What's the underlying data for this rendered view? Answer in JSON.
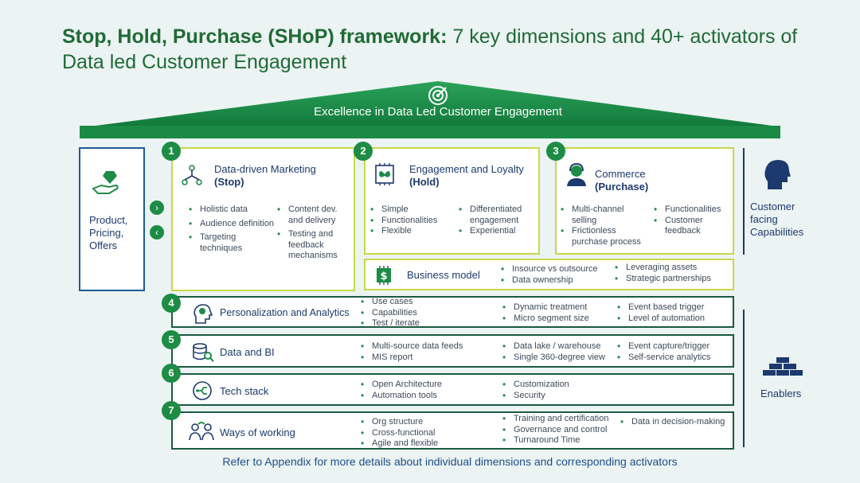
{
  "title": {
    "bold": "Stop, Hold, Purchase (SHoP) framework:",
    "rest": " 7 key dimensions and 40+ activators of Data led Customer Engagement"
  },
  "roof": {
    "label": "Excellence in Data Led Customer Engagement"
  },
  "left_panel": {
    "label": "Product, Pricing, Offers"
  },
  "pillars": [
    {
      "num": "1",
      "title": "Data-driven Marketing",
      "sub": "(Stop)",
      "col1": [
        "Holistic data",
        "Audience definition",
        "Targeting techniques"
      ],
      "col2": [
        "Content dev. and delivery",
        "Testing and feedback mechanisms"
      ]
    },
    {
      "num": "2",
      "title": "Engagement and Loyalty",
      "sub": "(Hold)",
      "col1": [
        "Simple",
        "Functionalities",
        "Flexible"
      ],
      "col2": [
        "Differentiated engagement",
        "Experiential"
      ]
    },
    {
      "num": "3",
      "title": "Commerce",
      "sub": "(Purchase)",
      "col1": [
        "Multi-channel selling",
        "Frictionless purchase process"
      ],
      "col2": [
        "Functionalities",
        "Customer feedback"
      ]
    }
  ],
  "business_model": {
    "label": "Business model",
    "col1": [
      "Insource vs outsource",
      "Data ownership"
    ],
    "col2": [
      "Leveraging assets",
      "Strategic partnerships"
    ]
  },
  "rows": [
    {
      "num": "4",
      "label": "Personalization and Analytics",
      "col1": [
        "Use cases",
        "Capabilities",
        "Test / iterate"
      ],
      "col2": [
        "Dynamic treatment",
        "Micro segment size"
      ],
      "col3": [
        "Event based trigger",
        "Level of automation"
      ]
    },
    {
      "num": "5",
      "label": "Data and BI",
      "col1": [
        "Multi-source data feeds",
        "MIS report"
      ],
      "col2": [
        "Data lake / warehouse",
        "Single 360-degree view"
      ],
      "col3": [
        "Event capture/trigger",
        "Self-service analytics"
      ]
    },
    {
      "num": "6",
      "label": "Tech stack",
      "col1": [
        "Open Architecture",
        "Automation tools"
      ],
      "col2": [
        "Customization",
        "Security"
      ],
      "col3": []
    },
    {
      "num": "7",
      "label": "Ways of working",
      "col1": [
        "Org structure",
        "Cross-functional",
        "Agile and flexible"
      ],
      "col2": [
        "Training and certification",
        "Governance and control",
        "Turnaround Time"
      ],
      "col3": [
        "Data in decision-making"
      ]
    }
  ],
  "side_labels": {
    "customer": "Customer facing Capabilities",
    "enablers": "Enablers"
  },
  "footer": "Refer to Appendix for more details about individual dimensions and corresponding activators",
  "colors": {
    "green": "#1d8c45",
    "navy": "#1c3a6e",
    "lime": "#c7d84a"
  },
  "icons": [
    "target-icon",
    "hand-gem-icon",
    "network-icon",
    "butterfly-chip-icon",
    "headset-person-icon",
    "dollar-chip-icon",
    "head-gears-icon",
    "database-search-icon",
    "circuit-icon",
    "people-exchange-icon",
    "person-head-icon",
    "bricks-icon"
  ]
}
